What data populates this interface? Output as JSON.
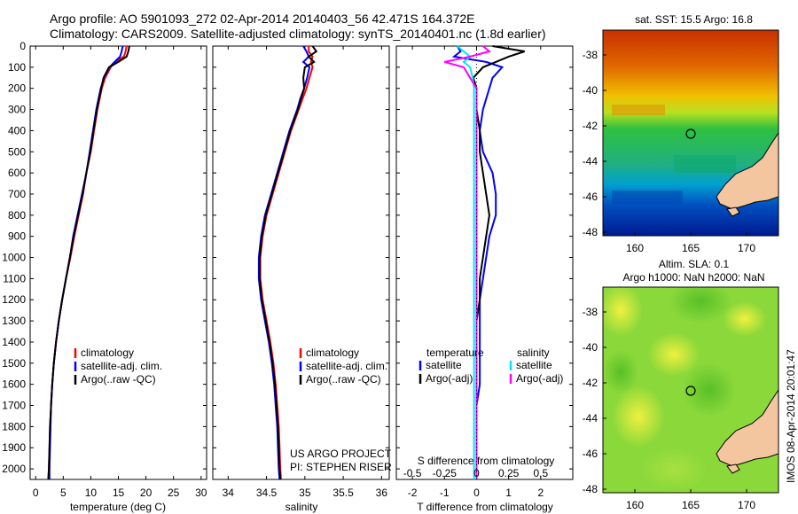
{
  "header": {
    "line1": "Argo profile: AO 5901093_272 02-Apr-2014 20140403_56 42.471S 164.372E",
    "line2": "Climatology: CARS2009. Satellite-adjusted climatology: synTS_20140401.nc (1.8d earlier)"
  },
  "map_top": {
    "title": "sat. SST: 15.5 Argo: 16.8",
    "yticks": [
      "-38",
      "-40",
      "-42",
      "-44",
      "-46",
      "-48"
    ],
    "xticks": [
      "160",
      "165",
      "170"
    ]
  },
  "map_bottom": {
    "title1": "Altim. SLA: 0.1",
    "title2": "Argo h1000: NaN h2000: NaN",
    "yticks": [
      "-38",
      "-40",
      "-42",
      "-44",
      "-46",
      "-48"
    ],
    "xticks": [
      "160",
      "165",
      "170"
    ],
    "credit": "IMOS 08-Apr-2014 20:01:47"
  },
  "colors": {
    "climatology": "#ff0000",
    "satellite": "#0000ff",
    "argo": "#000000",
    "sal_satellite": "#00e5ff",
    "sal_argo": "#ff00ff"
  },
  "chart_data": [
    {
      "type": "line",
      "panel": "temperature",
      "xlabel": "temperature (deg C)",
      "xlim": [
        -1,
        31
      ],
      "ylim": [
        2050,
        0
      ],
      "xticks": [
        "0",
        "5",
        "10",
        "15",
        "20",
        "25",
        "30"
      ],
      "yticks": [
        "0",
        "100",
        "200",
        "300",
        "400",
        "500",
        "600",
        "700",
        "800",
        "900",
        "1000",
        "1100",
        "1200",
        "1300",
        "1400",
        "1500",
        "1600",
        "1700",
        "1800",
        "1900",
        "2000"
      ],
      "legend": [
        "climatology",
        "satellite-adj. clim.",
        "Argo(..raw -QC)"
      ],
      "depth": [
        0,
        25,
        50,
        75,
        100,
        150,
        200,
        250,
        300,
        400,
        500,
        600,
        700,
        800,
        900,
        1000,
        1100,
        1200,
        1300,
        1400,
        1500,
        1600,
        1700,
        1800,
        1900,
        2000,
        2050
      ],
      "series": [
        {
          "name": "climatology",
          "values": [
            16.5,
            16.3,
            16.0,
            14.5,
            13.6,
            12.6,
            12.0,
            11.6,
            11.2,
            10.6,
            10.0,
            9.2,
            8.6,
            7.8,
            7.0,
            6.3,
            5.5,
            4.8,
            4.2,
            3.7,
            3.3,
            3.0,
            2.8,
            2.6,
            2.5,
            2.4,
            2.3
          ]
        },
        {
          "name": "satellite-adj. clim.",
          "values": [
            15.8,
            15.6,
            15.3,
            14.3,
            13.4,
            12.4,
            11.8,
            11.4,
            11.0,
            10.4,
            9.8,
            9.2,
            8.4,
            7.6,
            6.8,
            6.2,
            5.5,
            4.8,
            4.2,
            3.7,
            3.3,
            3.0,
            2.8,
            2.7,
            2.6,
            2.5,
            2.5
          ]
        },
        {
          "name": "Argo(..raw -QC)",
          "values": [
            17.0,
            16.8,
            16.5,
            15.0,
            13.3,
            12.3,
            11.9,
            11.5,
            11.1,
            10.5,
            9.9,
            9.2,
            8.5,
            7.7,
            6.9,
            6.2,
            5.5,
            4.8,
            4.2,
            3.7,
            3.3,
            3.0,
            2.8,
            2.6,
            2.5,
            2.4,
            2.3
          ]
        }
      ]
    },
    {
      "type": "line",
      "panel": "salinity",
      "xlabel": "salinity",
      "xlim": [
        33.8,
        36.1
      ],
      "ylim": [
        2050,
        0
      ],
      "xticks": [
        "34",
        "34.5",
        "35",
        "35.5",
        "36"
      ],
      "legend": [
        "climatology",
        "satellite-adj. clim.",
        "Argo(..raw -QC)"
      ],
      "annotation": [
        "US ARGO PROJECT",
        "PI: STEPHEN RISER"
      ],
      "depth": [
        0,
        25,
        50,
        75,
        100,
        150,
        200,
        250,
        300,
        400,
        500,
        600,
        700,
        800,
        900,
        1000,
        1100,
        1200,
        1300,
        1400,
        1500,
        1600,
        1700,
        1800,
        1900,
        2000,
        2050
      ],
      "series": [
        {
          "name": "climatology",
          "values": [
            35.05,
            35.05,
            35.1,
            35.08,
            35.1,
            35.06,
            35.02,
            34.97,
            34.92,
            34.82,
            34.74,
            34.66,
            34.58,
            34.5,
            34.45,
            34.42,
            34.42,
            34.45,
            34.5,
            34.55,
            34.59,
            34.62,
            34.64,
            34.66,
            34.67,
            34.68,
            34.69
          ]
        },
        {
          "name": "satellite-adj. clim.",
          "values": [
            34.98,
            35.02,
            35.05,
            34.98,
            35.06,
            35.03,
            34.99,
            34.94,
            34.9,
            34.8,
            34.72,
            34.64,
            34.56,
            34.48,
            34.43,
            34.4,
            34.4,
            34.43,
            34.48,
            34.53,
            34.57,
            34.6,
            34.62,
            34.64,
            34.65,
            34.66,
            34.67
          ]
        },
        {
          "name": "Argo(..raw -QC)",
          "values": [
            35.1,
            35.15,
            35.05,
            35.12,
            35.0,
            34.98,
            34.99,
            34.95,
            34.91,
            34.81,
            34.73,
            34.65,
            34.57,
            34.49,
            34.44,
            34.41,
            34.41,
            34.44,
            34.49,
            34.54,
            34.58,
            34.61,
            34.63,
            34.65,
            34.66,
            34.67,
            34.68
          ]
        }
      ]
    },
    {
      "type": "line",
      "panel": "difference",
      "xlabel": "T difference from climatology",
      "xlabel2": "S difference from climatology",
      "xlim": [
        -2.5,
        3
      ],
      "ylim": [
        2050,
        0
      ],
      "xticks": [
        "-2",
        "-1",
        "0",
        "1",
        "2"
      ],
      "xticks2": [
        "-0.5",
        "-0.25",
        "0",
        "0.25",
        "0.5"
      ],
      "legend_titles": [
        "temperature",
        "salinity"
      ],
      "legend": [
        "satellite",
        "Argo(-adj)",
        "satellite",
        "Argo(-adj)"
      ],
      "depth": [
        0,
        25,
        50,
        75,
        100,
        150,
        200,
        250,
        300,
        400,
        500,
        600,
        700,
        800,
        900,
        1000,
        1100,
        1200,
        1300,
        1400,
        1500,
        1600,
        1700,
        1800,
        1900,
        2000,
        2050
      ],
      "series": [
        {
          "name": "T satellite",
          "values": [
            -0.6,
            -0.5,
            -0.7,
            0.3,
            0.8,
            0.5,
            0.4,
            0.3,
            0.2,
            0.1,
            0.2,
            0.5,
            0.6,
            0.6,
            0.4,
            0.3,
            0.2,
            0.1,
            0.1,
            0.1,
            0.1,
            0.1,
            0.0,
            0.0,
            0.0,
            0.0,
            0.0
          ]
        },
        {
          "name": "T Argo(-adj)",
          "values": [
            0.5,
            1.5,
            1.0,
            0.6,
            0.2,
            -0.1,
            0.0,
            0.0,
            0.0,
            0.1,
            0.1,
            0.2,
            0.3,
            0.4,
            0.3,
            0.2,
            0.1,
            0.1,
            0.0,
            0.0,
            0.0,
            0.0,
            0.0,
            0.0,
            0.0,
            0.0,
            0.0
          ]
        },
        {
          "name": "S satellite",
          "values": [
            -0.15,
            -0.1,
            -0.05,
            -0.1,
            -0.05,
            -0.03,
            -0.02,
            -0.02,
            -0.02,
            -0.02,
            -0.02,
            -0.02,
            -0.02,
            -0.02,
            -0.02,
            -0.02,
            -0.02,
            -0.02,
            -0.02,
            -0.02,
            -0.02,
            -0.02,
            -0.02,
            -0.02,
            -0.02,
            -0.02,
            -0.02
          ]
        },
        {
          "name": "S Argo(-adj)",
          "values": [
            0.05,
            0.1,
            -0.05,
            -0.25,
            -0.1,
            -0.05,
            0.0,
            0.0,
            0.0,
            0.0,
            0.0,
            0.0,
            0.0,
            0.0,
            0.0,
            0.0,
            0.0,
            0.0,
            0.0,
            0.0,
            0.0,
            0.0,
            0.0,
            0.0,
            0.0,
            0.0,
            0.0
          ]
        }
      ]
    }
  ]
}
